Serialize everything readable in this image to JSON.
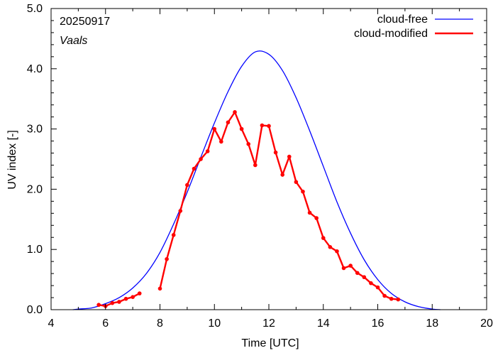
{
  "chart_data": {
    "type": "line",
    "title": "20250917",
    "subtitle": "Vaals",
    "xlabel": "Time  [UTC]",
    "ylabel": "UV index  [-]",
    "xlim": [
      4,
      20
    ],
    "ylim": [
      0,
      5
    ],
    "x_ticks": [
      "4",
      "6",
      "8",
      "10",
      "12",
      "14",
      "16",
      "18",
      "20"
    ],
    "y_ticks": [
      "0.0",
      "1.0",
      "2.0",
      "3.0",
      "4.0",
      "5.0"
    ],
    "grid": false,
    "legend_position": "top-right",
    "series": [
      {
        "name": "cloud-free",
        "color": "#0000ff",
        "style": "line",
        "points": [
          [
            4.8,
            0.0
          ],
          [
            5.0,
            0.01
          ],
          [
            5.5,
            0.03
          ],
          [
            6.0,
            0.1
          ],
          [
            6.5,
            0.2
          ],
          [
            7.0,
            0.36
          ],
          [
            7.5,
            0.6
          ],
          [
            8.0,
            0.95
          ],
          [
            8.5,
            1.42
          ],
          [
            9.0,
            1.95
          ],
          [
            9.5,
            2.53
          ],
          [
            10.0,
            3.1
          ],
          [
            10.5,
            3.62
          ],
          [
            11.0,
            4.04
          ],
          [
            11.5,
            4.28
          ],
          [
            12.0,
            4.24
          ],
          [
            12.5,
            3.97
          ],
          [
            13.0,
            3.52
          ],
          [
            13.5,
            2.97
          ],
          [
            14.0,
            2.38
          ],
          [
            14.5,
            1.79
          ],
          [
            15.0,
            1.27
          ],
          [
            15.5,
            0.83
          ],
          [
            16.0,
            0.5
          ],
          [
            16.5,
            0.27
          ],
          [
            17.0,
            0.13
          ],
          [
            17.5,
            0.05
          ],
          [
            18.0,
            0.01
          ],
          [
            18.3,
            0.0
          ]
        ]
      },
      {
        "name": "cloud-modified",
        "color": "#ff0000",
        "style": "line-points",
        "segments": [
          [
            [
              5.75,
              0.08
            ],
            [
              6.0,
              0.06
            ],
            [
              6.25,
              0.11
            ],
            [
              6.5,
              0.13
            ],
            [
              6.75,
              0.18
            ],
            [
              7.0,
              0.21
            ],
            [
              7.25,
              0.27
            ]
          ],
          [
            [
              8.0,
              0.35
            ],
            [
              8.25,
              0.84
            ],
            [
              8.5,
              1.24
            ],
            [
              8.75,
              1.64
            ],
            [
              9.0,
              2.07
            ],
            [
              9.25,
              2.34
            ],
            [
              9.5,
              2.5
            ],
            [
              9.75,
              2.63
            ],
            [
              10.0,
              3.0
            ],
            [
              10.25,
              2.79
            ],
            [
              10.5,
              3.11
            ],
            [
              10.75,
              3.28
            ],
            [
              11.0,
              3.0
            ],
            [
              11.25,
              2.75
            ],
            [
              11.5,
              2.4
            ],
            [
              11.75,
              3.06
            ],
            [
              12.0,
              3.05
            ],
            [
              12.25,
              2.61
            ],
            [
              12.5,
              2.24
            ],
            [
              12.75,
              2.54
            ],
            [
              13.0,
              2.12
            ],
            [
              13.25,
              1.96
            ],
            [
              13.5,
              1.61
            ],
            [
              13.75,
              1.52
            ],
            [
              14.0,
              1.19
            ],
            [
              14.25,
              1.04
            ],
            [
              14.5,
              0.97
            ],
            [
              14.75,
              0.69
            ],
            [
              15.0,
              0.73
            ],
            [
              15.25,
              0.61
            ],
            [
              15.5,
              0.54
            ],
            [
              15.75,
              0.44
            ],
            [
              16.0,
              0.37
            ],
            [
              16.25,
              0.23
            ],
            [
              16.5,
              0.18
            ],
            [
              16.75,
              0.17
            ]
          ]
        ]
      }
    ]
  }
}
